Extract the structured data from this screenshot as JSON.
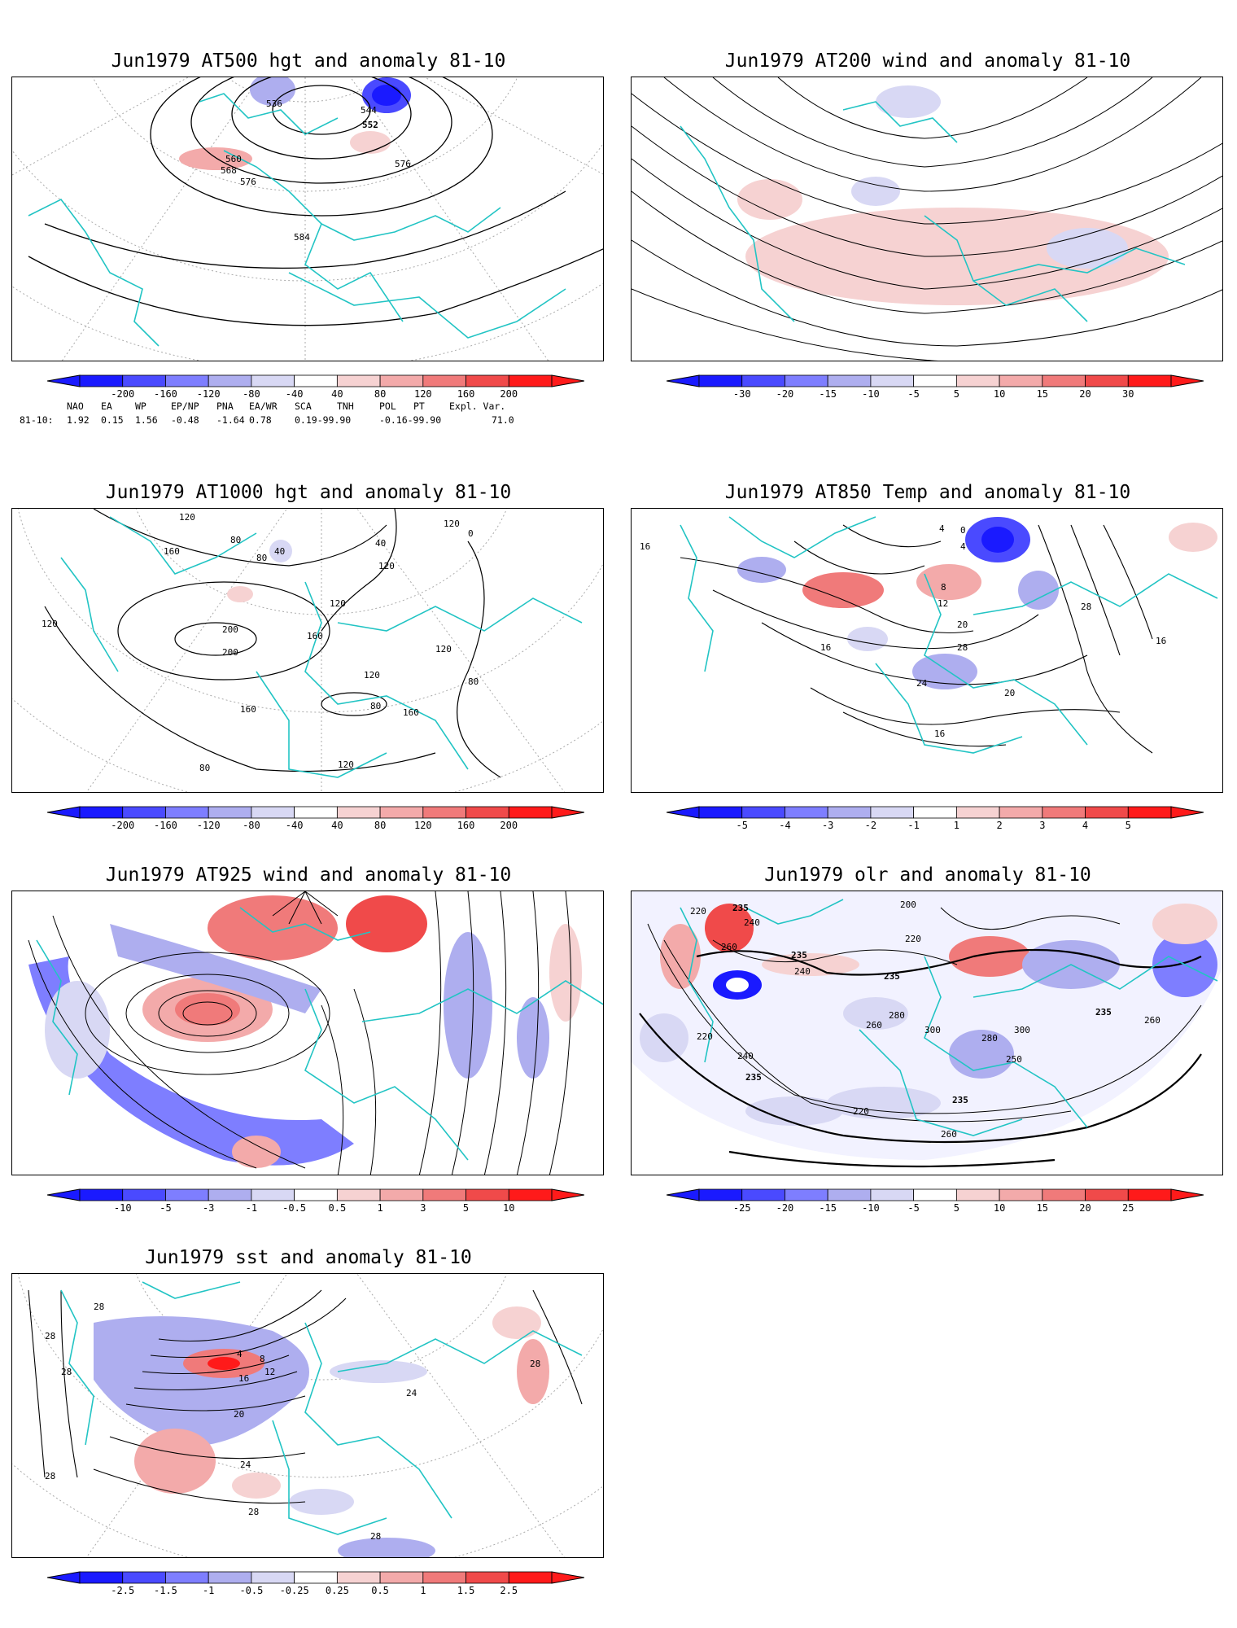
{
  "panels": [
    {
      "id": "p1",
      "title": "Jun1979 AT500 hgt and anomaly 81-10",
      "colorbar": [
        "-200",
        "-160",
        "-120",
        "-80",
        "-40",
        "40",
        "80",
        "120",
        "160",
        "200"
      ],
      "contour_labels": [
        "536",
        "544",
        "552",
        "560",
        "568",
        "576",
        "576",
        "584"
      ]
    },
    {
      "id": "p2",
      "title": "Jun1979 AT200 wind and anomaly 81-10",
      "colorbar": [
        "-30",
        "-20",
        "-15",
        "-10",
        "-5",
        "5",
        "10",
        "15",
        "20",
        "30"
      ],
      "contour_labels": []
    },
    {
      "id": "p3",
      "title": "Jun1979 AT1000 hgt and anomaly 81-10",
      "colorbar": [
        "-200",
        "-160",
        "-120",
        "-80",
        "-40",
        "40",
        "80",
        "120",
        "160",
        "200"
      ],
      "contour_labels": [
        "120",
        "160",
        "80",
        "40",
        "120",
        "160",
        "120",
        "0",
        "120",
        "200",
        "200",
        "160",
        "40",
        "120",
        "80",
        "120",
        "80",
        "80",
        "160",
        "120",
        "80",
        "120"
      ]
    },
    {
      "id": "p4",
      "title": "Jun1979 AT850 Temp and anomaly 81-10",
      "colorbar": [
        "-5",
        "-4",
        "-3",
        "-2",
        "-1",
        "1",
        "2",
        "3",
        "4",
        "5"
      ],
      "contour_labels": [
        "16",
        "4",
        "0",
        "4",
        "8",
        "12",
        "20",
        "28",
        "28",
        "16",
        "24",
        "20",
        "16",
        "16"
      ]
    },
    {
      "id": "p5",
      "title": "Jun1979 AT925 wind and anomaly 81-10",
      "colorbar": [
        "-10",
        "-5",
        "-3",
        "-1",
        "-0.5",
        "0.5",
        "1",
        "3",
        "5",
        "10"
      ],
      "contour_labels": []
    },
    {
      "id": "p6",
      "title": "Jun1979 olr and anomaly 81-10",
      "colorbar": [
        "-25",
        "-20",
        "-15",
        "-10",
        "-5",
        "5",
        "10",
        "15",
        "20",
        "25"
      ],
      "contour_labels": [
        "220",
        "260",
        "240",
        "235",
        "200",
        "235",
        "220",
        "240",
        "235",
        "260",
        "280",
        "300",
        "280",
        "300",
        "235",
        "260",
        "220",
        "250",
        "240",
        "235",
        "235",
        "220",
        "260"
      ]
    },
    {
      "id": "p7",
      "title": "Jun1979 sst and anomaly 81-10",
      "colorbar": [
        "-2.5",
        "-1.5",
        "-1",
        "-0.5",
        "-0.25",
        "0.25",
        "0.5",
        "1",
        "1.5",
        "2.5"
      ],
      "contour_labels": [
        "28",
        "28",
        "28",
        "4",
        "8",
        "12",
        "16",
        "20",
        "24",
        "28",
        "28",
        "28",
        "24",
        "28"
      ]
    }
  ],
  "indices": {
    "header": [
      "NAO",
      "EA",
      "WP",
      "EP/NP",
      "PNA",
      "EA/WR",
      "SCA",
      "TNH",
      "POL",
      "PT",
      "Expl. Var."
    ],
    "row_label": "81-10:",
    "values": [
      "1.92",
      "0.15",
      "1.56",
      "-0.48",
      "-1.64",
      "0.78",
      "0.19-99.90",
      "-0.16-99.90",
      "",
      "",
      "71.0"
    ]
  },
  "colors": {
    "blue_scale": [
      "#1a1aff",
      "#4a4aff",
      "#7e7eff",
      "#aeaeef",
      "#d8d8f4"
    ],
    "red_scale": [
      "#f6d2d2",
      "#f3aaaa",
      "#f07a7a",
      "#f04a4a",
      "#ff1a1a"
    ],
    "coast": "#22c4c4",
    "contour": "#000000"
  }
}
